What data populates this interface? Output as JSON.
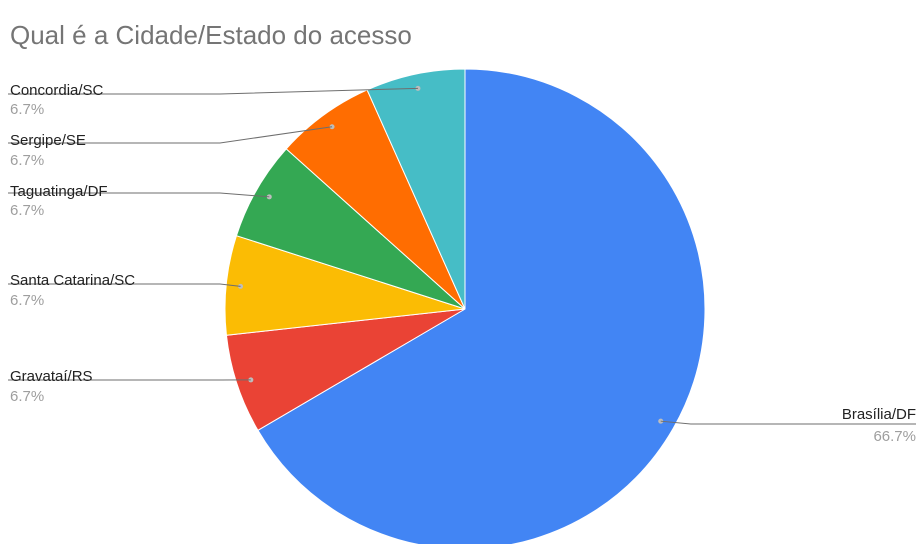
{
  "chart_data": {
    "type": "pie",
    "title": "Qual é a Cidade/Estado do acesso",
    "legend": "none",
    "slices": [
      {
        "label": "Brasília/DF",
        "value": 66.7,
        "percent_label": "66.7%",
        "color": "#4285F4"
      },
      {
        "label": "Gravataí/RS",
        "value": 6.7,
        "percent_label": "6.7%",
        "color": "#EA4335"
      },
      {
        "label": "Santa Catarina/SC",
        "value": 6.7,
        "percent_label": "6.7%",
        "color": "#FBBC04"
      },
      {
        "label": "Taguatinga/DF",
        "value": 6.7,
        "percent_label": "6.7%",
        "color": "#34A853"
      },
      {
        "label": "Sergipe/SE",
        "value": 6.7,
        "percent_label": "6.7%",
        "color": "#FF6D01"
      },
      {
        "label": "Concordia/SC",
        "value": 6.7,
        "percent_label": "6.7%",
        "color": "#46BDC6"
      }
    ]
  }
}
